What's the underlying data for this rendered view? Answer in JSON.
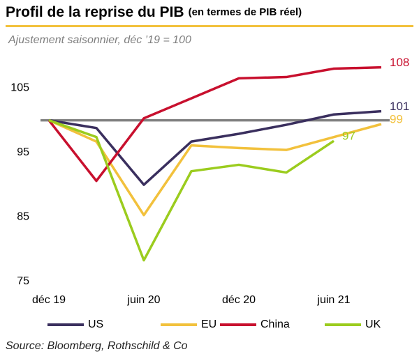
{
  "chart_data": {
    "type": "line",
    "title": "Profil de la reprise du PIB",
    "title_note": "(en termes de PIB réel)",
    "subtitle": "Ajustement saisonnier, déc ’19 = 100",
    "source": "Source: Bloomberg, Rothschild & Co",
    "categories": [
      "déc 19",
      null,
      "juin 20",
      null,
      "déc 20",
      null,
      "juin 21",
      null
    ],
    "ylim": [
      75,
      110
    ],
    "yticks": [
      75,
      85,
      95,
      105
    ],
    "reference_line": 100,
    "reference_color": "#808080",
    "series": [
      {
        "name": "US",
        "color": "#3a2f5e",
        "values": [
          100,
          98.8,
          90.0,
          96.7,
          97.9,
          99.3,
          100.9,
          101.4
        ],
        "value_labels": [
          null,
          null,
          null,
          null,
          null,
          null,
          null,
          "101"
        ]
      },
      {
        "name": "EU",
        "color": "#f2c13c",
        "values": [
          100,
          96.7,
          85.3,
          96.1,
          95.7,
          95.4,
          97.4,
          99.4
        ],
        "value_labels": [
          null,
          null,
          null,
          null,
          null,
          null,
          null,
          "99"
        ]
      },
      {
        "name": "China",
        "color": "#c8102e",
        "values": [
          100,
          90.6,
          100.3,
          103.4,
          106.5,
          106.7,
          108.0,
          108.2
        ],
        "value_labels": [
          null,
          null,
          null,
          null,
          null,
          null,
          null,
          "108"
        ]
      },
      {
        "name": "UK",
        "color": "#9bcc1e",
        "values": [
          100,
          97.4,
          78.3,
          92.1,
          93.1,
          91.9,
          96.8,
          null
        ],
        "value_labels": [
          null,
          null,
          null,
          null,
          null,
          null,
          "97",
          null
        ]
      }
    ]
  }
}
